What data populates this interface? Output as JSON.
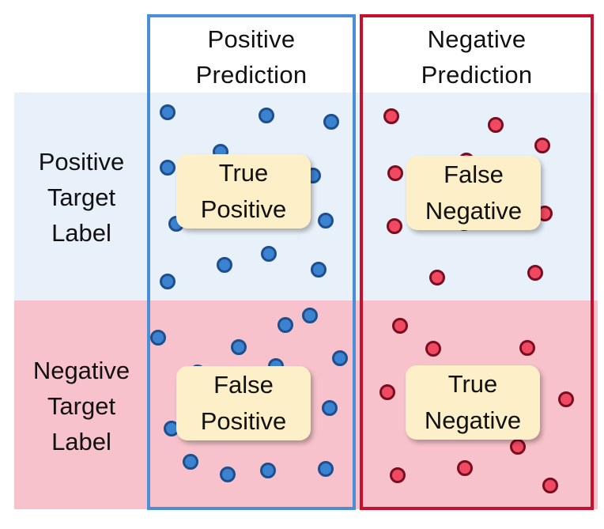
{
  "columns": {
    "positive": {
      "line1": "Positive",
      "line2": "Prediction"
    },
    "negative": {
      "line1": "Negative",
      "line2": "Prediction"
    }
  },
  "rows": {
    "positive": {
      "line1": "Positive",
      "line2": "Target",
      "line3": "Label"
    },
    "negative": {
      "line1": "Negative",
      "line2": "Target",
      "line3": "Label"
    }
  },
  "cells": {
    "tp": {
      "line1": "True",
      "line2": "Positive"
    },
    "fn": {
      "line1": "False",
      "line2": "Negative"
    },
    "fp": {
      "line1": "False",
      "line2": "Positive"
    },
    "tn": {
      "line1": "True",
      "line2": "Negative"
    }
  },
  "colors": {
    "positive_band": "#e8f0f9",
    "negative_band": "#f7c2cb",
    "positive_frame": "#4a8fd6",
    "negative_frame": "#c8102e",
    "blue_dot_fill": "#3b82d0",
    "blue_dot_stroke": "#1d4f8e",
    "red_dot_fill": "#ef4a62",
    "red_dot_stroke": "#7a0d1f",
    "card_fill": "#fdefc8"
  }
}
